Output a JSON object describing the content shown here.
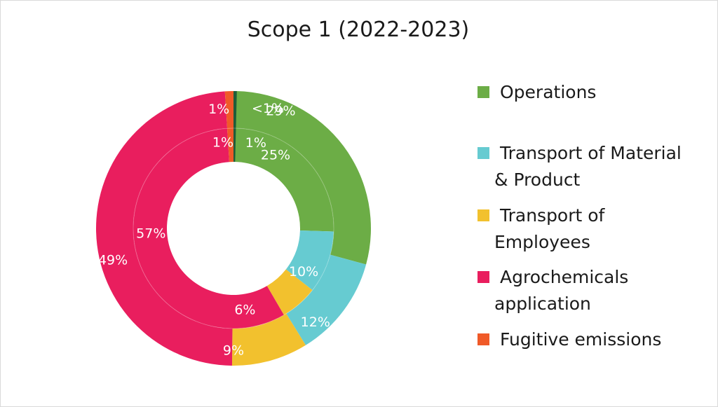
{
  "chart_data": {
    "type": "pie",
    "title": "Scope 1 (2022-2023)",
    "categories": [
      "Operations",
      "Transport of Material & Product",
      "Transport of Employees",
      "Agrochemicals application",
      "Fugitive emissions"
    ],
    "colors": [
      "#6cad46",
      "#66cbd1",
      "#f2c12e",
      "#e91e5e",
      "#f05a28"
    ],
    "rings": [
      {
        "ring": "outer",
        "values": [
          29,
          12,
          9,
          49,
          1
        ],
        "labels": [
          "29%",
          "12%",
          "9%",
          "49%",
          "1%"
        ]
      },
      {
        "ring": "inner",
        "values": [
          25,
          10,
          6,
          57,
          1
        ],
        "labels": [
          "25%",
          "10%",
          "6%",
          "57%",
          "1%"
        ]
      }
    ],
    "extra_slice": {
      "color": "#1f5d3a",
      "outer_label": "<1%",
      "inner_label": "1%"
    },
    "legend_position": "right"
  },
  "legend": [
    {
      "line1": "Operations",
      "line2": ""
    },
    {
      "line1": "Transport of Material",
      "line2": "& Product"
    },
    {
      "line1": "Transport of",
      "line2": "Employees"
    },
    {
      "line1": "Agrochemicals",
      "line2": "application"
    },
    {
      "line1": "Fugitive emissions",
      "line2": ""
    }
  ]
}
